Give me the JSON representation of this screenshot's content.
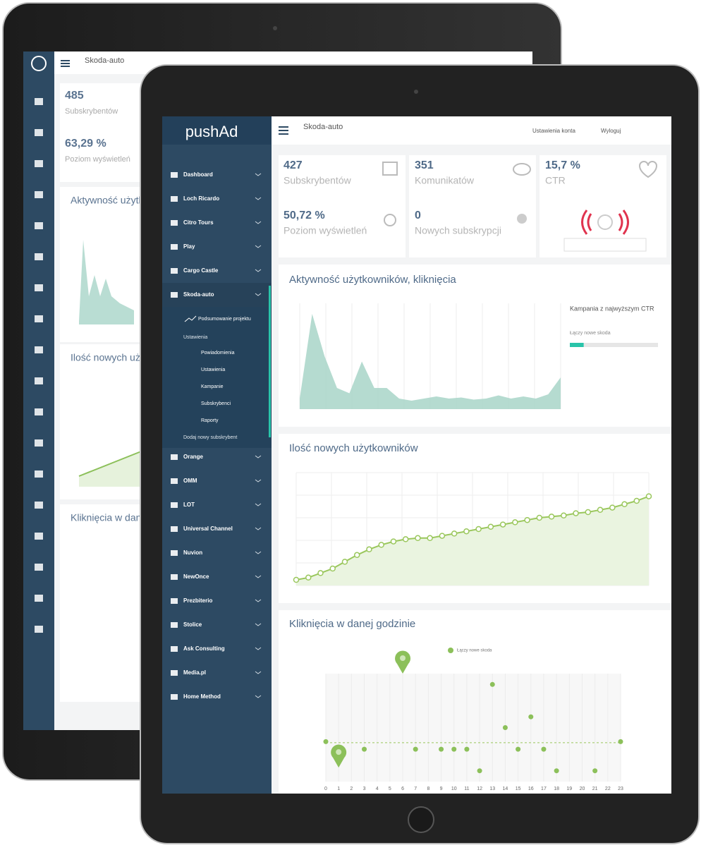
{
  "back_tablet": {
    "header": {
      "title": "Skoda-auto"
    },
    "stats": [
      {
        "value": "485",
        "label": "Subskrybentów"
      },
      {
        "value": "63,29 %",
        "label": "Poziom wyświetleń"
      }
    ],
    "card_titles": [
      "Aktywność użytkowników, kliknięcia",
      "Ilość nowych użytkowników",
      "Kliknięcia w danej godzinie"
    ]
  },
  "front_tablet": {
    "sidebar": {
      "logo": "pushAd",
      "menu": [
        "Dashboard",
        "Loch Ricardo",
        "Citro Tours",
        "Play",
        "Cargo Castle",
        "Skoda-auto"
      ],
      "submenu": {
        "project": "Podsumowanie projektu",
        "group": "Ustawienia",
        "items": [
          "Powiadomienia",
          "Ustawienia",
          "Kampanie",
          "Subskrybenci",
          "Raporty"
        ],
        "add": "Dodaj nowy subskrybent"
      },
      "menu_more": [
        "Orange",
        "OMM",
        "LOT",
        "Universal Channel",
        "Nuvion",
        "NewOnce",
        "Prezbiterio",
        "Stolice",
        "Ask Consulting",
        "Media.pl",
        "Home Method"
      ]
    },
    "header": {
      "title": "Skoda-auto",
      "links": [
        "Ustawienia konta",
        "Wyloguj"
      ]
    },
    "stats": [
      {
        "value": "427",
        "label": "Subskrybentów"
      },
      {
        "value": "351",
        "label": "Komunikatów"
      },
      {
        "value": "15,7 %",
        "label": "CTR"
      },
      {
        "value": "50,72 %",
        "label": "Poziom wyświetleń"
      },
      {
        "value": "0",
        "label": "Nowych subskrypcji"
      }
    ],
    "activity_chart": {
      "title": "Aktywność użytkowników, kliknięcia",
      "values": [
        1,
        9,
        5,
        2,
        1.5,
        4.5,
        2,
        2,
        1,
        0.8,
        1,
        1.2,
        1,
        1.1,
        0.9,
        1,
        1.3,
        1,
        1.2,
        1,
        1.4,
        3
      ],
      "ylim": [
        0,
        10
      ],
      "legend_title": "Kampania z najwyższym CTR",
      "progress": {
        "label": "Łączy nowe skoda",
        "value": 15.7,
        "max": 100
      }
    },
    "users_chart": {
      "title": "Ilość nowych użytkowników",
      "values": [
        5,
        7,
        11,
        15,
        21,
        27,
        32,
        36,
        39,
        41,
        42,
        42,
        44,
        46,
        48,
        50,
        52,
        54,
        56,
        58,
        60,
        61,
        62,
        64,
        65,
        67,
        69,
        72,
        75,
        79
      ],
      "ylim": [
        0,
        100
      ]
    },
    "clicks_chart": {
      "title": "Kliknięcia w danej godzinie",
      "series": [
        {
          "name": "Łączy nowe skoda",
          "color": "#8cc05a",
          "x": [
            0,
            3,
            7,
            9,
            10,
            11,
            12,
            13,
            14,
            15,
            16,
            17,
            18,
            21,
            23
          ],
          "values": [
            3.7,
            3,
            3,
            3,
            3,
            3,
            1,
            9,
            5,
            3,
            6,
            3,
            1,
            1,
            3.7
          ]
        }
      ],
      "pins": {
        "x": [
          1,
          6
        ],
        "values": [
          1.3,
          10
        ]
      },
      "average": 3.6,
      "xlim": [
        0,
        23
      ],
      "ylim": [
        0,
        10
      ],
      "xticks": [
        0,
        1,
        2,
        3,
        4,
        5,
        6,
        7,
        8,
        9,
        10,
        11,
        12,
        13,
        14,
        15,
        16,
        17,
        18,
        19,
        20,
        21,
        22,
        23
      ]
    }
  }
}
